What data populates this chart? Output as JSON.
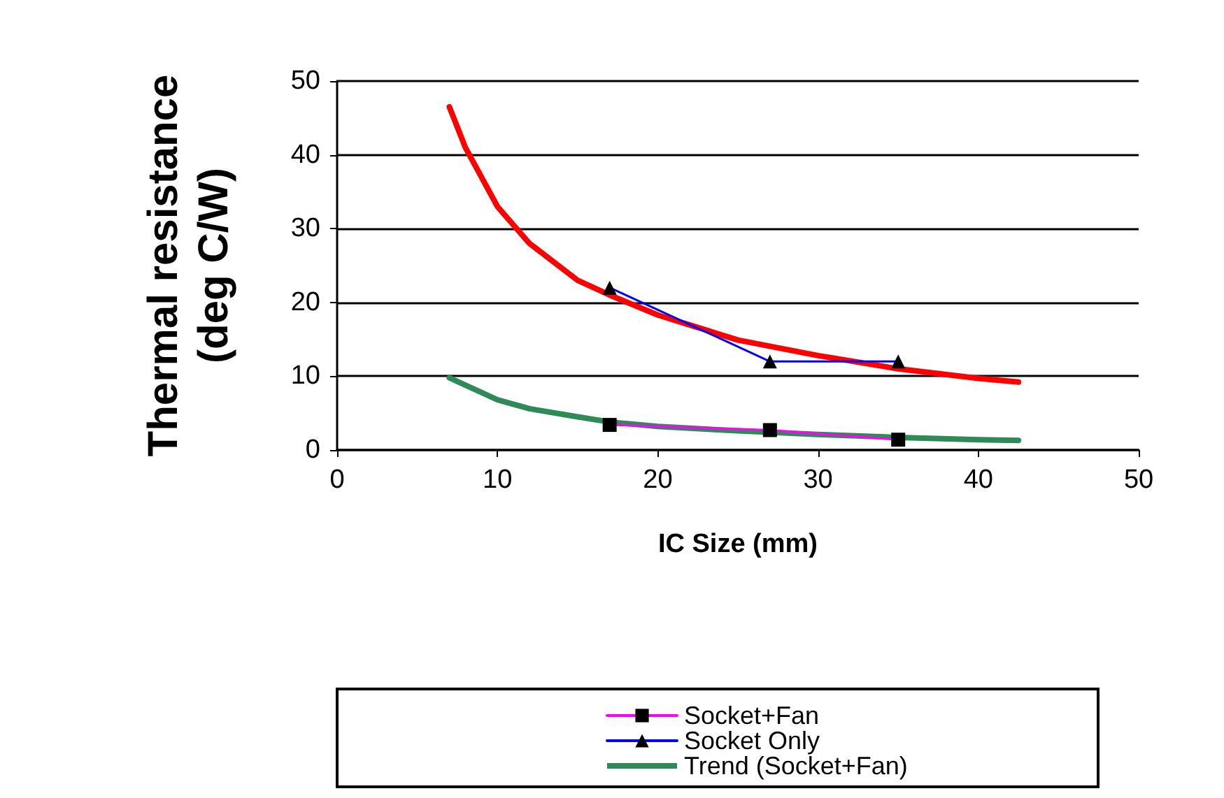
{
  "chart_data": {
    "type": "line",
    "xlabel": "IC Size (mm)",
    "ylabel": "Thermal resistance\n(deg C/W)",
    "xlim": [
      0,
      50
    ],
    "xticks": [
      0,
      10,
      20,
      30,
      40,
      50
    ],
    "ylim": [
      0,
      50
    ],
    "yticks": [
      0,
      10,
      20,
      30,
      40,
      50
    ],
    "grid": "y",
    "legend": "bottom",
    "series": [
      {
        "name": "Socket+Fan",
        "color": "#ff00ff",
        "marker": "square",
        "x": [
          17,
          27,
          35
        ],
        "values": [
          3.4,
          2.7,
          1.4
        ]
      },
      {
        "name": "Socket Only",
        "color": "#0000ff",
        "marker": "triangle",
        "x": [
          17,
          27,
          35
        ],
        "values": [
          22,
          12,
          12
        ]
      },
      {
        "color": "#ff0000",
        "marker": "none",
        "x": [
          7,
          8,
          10,
          12,
          15,
          17,
          20,
          25,
          30,
          35,
          40,
          42.5
        ],
        "values": [
          46.5,
          41,
          33,
          28,
          23,
          21,
          18.3,
          14.9,
          12.8,
          11,
          9.7,
          9.2
        ]
      },
      {
        "name": "Trend (Socket+Fan)",
        "color": "#2e8b57",
        "marker": "none",
        "x": [
          7,
          10,
          12,
          15,
          17,
          20,
          25,
          30,
          35,
          40,
          42.5
        ],
        "values": [
          9.8,
          6.8,
          5.6,
          4.5,
          3.8,
          3.2,
          2.6,
          2.1,
          1.7,
          1.4,
          1.3
        ]
      }
    ]
  }
}
